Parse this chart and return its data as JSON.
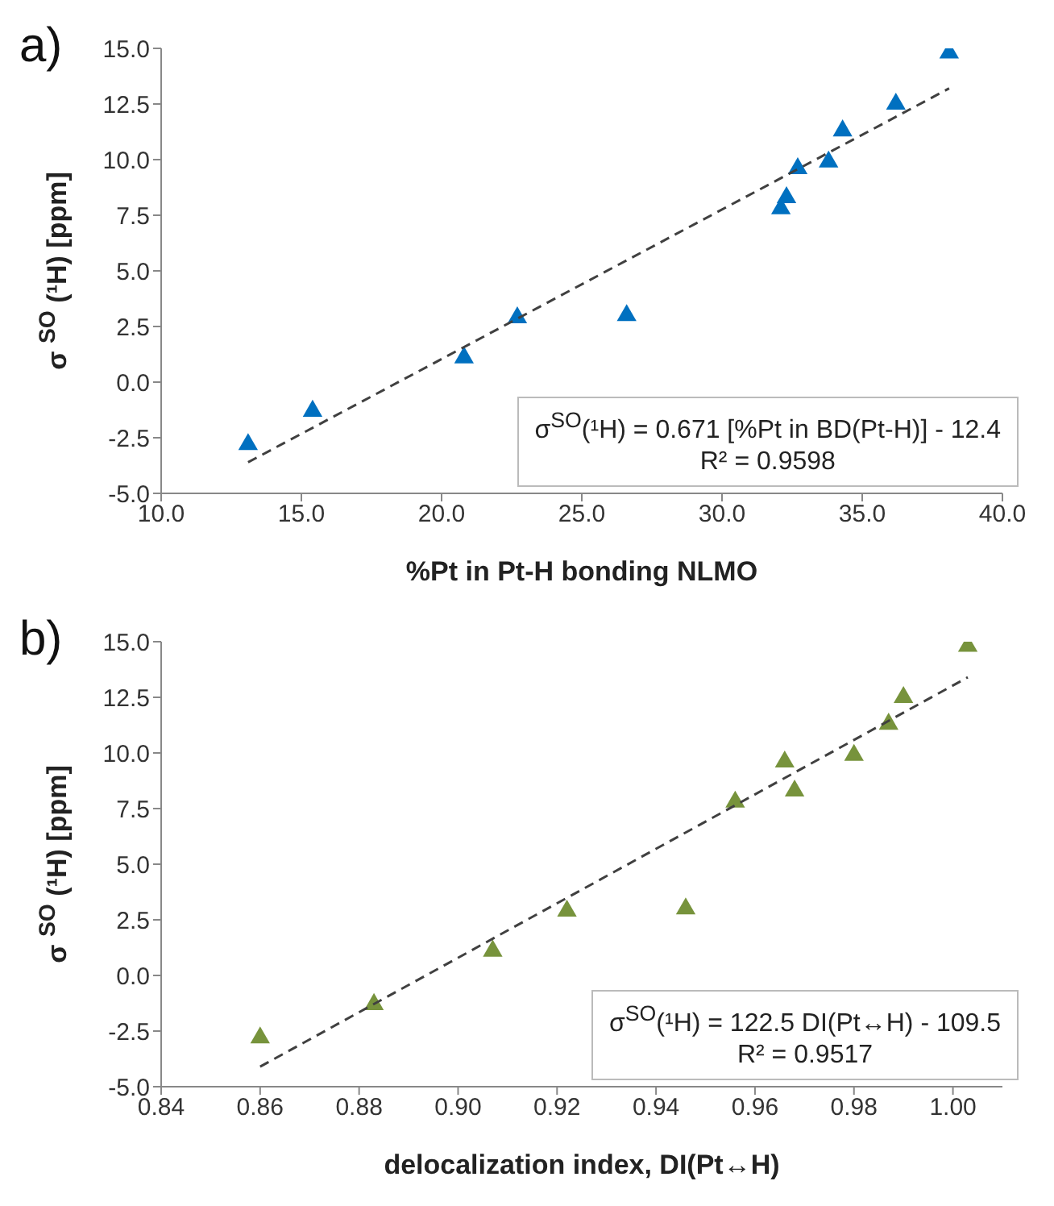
{
  "chart_data": [
    {
      "type": "scatter",
      "title": "a)",
      "xlabel": "%Pt in Pt-H bonding NLMO",
      "ylabel": "σ $^{SO}$ (¹H) [ppm]",
      "annotations": [
        "σ$^{SO}$(¹H) = 0.671 [%Pt in BD(Pt-H)] - 12.4",
        "R² = 0.9598"
      ],
      "xlim": [
        10,
        40
      ],
      "xticks": [
        {
          "value": 10,
          "label": "10.0"
        },
        {
          "value": 15,
          "label": "15.0"
        },
        {
          "value": 20,
          "label": "20.0"
        },
        {
          "value": 25,
          "label": "25.0"
        },
        {
          "value": 30,
          "label": "30.0"
        },
        {
          "value": 35,
          "label": "35.0"
        },
        {
          "value": 40,
          "label": "40.0"
        }
      ],
      "ylim": [
        -5,
        15
      ],
      "yticks": [
        {
          "value": -5,
          "label": "-5.0"
        },
        {
          "value": -2.5,
          "label": "-2.5"
        },
        {
          "value": 0,
          "label": "0.0"
        },
        {
          "value": 2.5,
          "label": "2.5"
        },
        {
          "value": 5,
          "label": "5.0"
        },
        {
          "value": 7.5,
          "label": "7.5"
        },
        {
          "value": 10,
          "label": "10.0"
        },
        {
          "value": 12.5,
          "label": "12.5"
        },
        {
          "value": 15,
          "label": "15.0"
        }
      ],
      "series": [
        {
          "type": "scatter",
          "color": "#0070c0",
          "marker": "triangle",
          "x": [
            13.1,
            15.4,
            20.8,
            22.7,
            26.6,
            32.1,
            32.3,
            32.7,
            33.8,
            34.3,
            36.2,
            38.1
          ],
          "values": [
            -2.8,
            -1.3,
            1.1,
            2.9,
            3.0,
            7.8,
            8.3,
            9.6,
            9.9,
            11.3,
            12.5,
            14.8
          ]
        },
        {
          "type": "line",
          "color": "#404040",
          "marker": "none",
          "line_style": "dashed",
          "x": [
            13.1,
            38.1
          ],
          "values": [
            -3.6,
            13.2
          ]
        }
      ]
    },
    {
      "type": "scatter",
      "title": "b)",
      "xlabel": "delocalization index, DI(Pt↔H)",
      "ylabel": "σ $^{SO}$ (¹H) [ppm]",
      "annotations": [
        "σ$^{SO}$(¹H) = 122.5 DI(Pt↔H) - 109.5",
        "R² = 0.9517"
      ],
      "xlim": [
        0.84,
        1.01
      ],
      "xticks": [
        {
          "value": 0.84,
          "label": "0.84"
        },
        {
          "value": 0.86,
          "label": "0.86"
        },
        {
          "value": 0.88,
          "label": "0.88"
        },
        {
          "value": 0.9,
          "label": "0.90"
        },
        {
          "value": 0.92,
          "label": "0.92"
        },
        {
          "value": 0.94,
          "label": "0.94"
        },
        {
          "value": 0.96,
          "label": "0.96"
        },
        {
          "value": 0.98,
          "label": "0.98"
        },
        {
          "value": 1,
          "label": "1.00"
        }
      ],
      "ylim": [
        -5,
        15
      ],
      "yticks": [
        {
          "value": -5,
          "label": "-5.0"
        },
        {
          "value": -2.5,
          "label": "-2.5"
        },
        {
          "value": 0,
          "label": "0.0"
        },
        {
          "value": 2.5,
          "label": "2.5"
        },
        {
          "value": 5,
          "label": "5.0"
        },
        {
          "value": 7.5,
          "label": "7.5"
        },
        {
          "value": 10,
          "label": "10.0"
        },
        {
          "value": 12.5,
          "label": "12.5"
        },
        {
          "value": 15,
          "label": "15.0"
        }
      ],
      "series": [
        {
          "type": "scatter",
          "color": "#77933c",
          "marker": "triangle",
          "x": [
            0.86,
            0.883,
            0.907,
            0.922,
            0.946,
            0.956,
            0.968,
            0.966,
            0.98,
            0.987,
            0.99,
            1.003
          ],
          "values": [
            -2.8,
            -1.3,
            1.1,
            2.9,
            3.0,
            7.8,
            8.3,
            9.6,
            9.9,
            11.3,
            12.5,
            14.8
          ]
        },
        {
          "type": "line",
          "color": "#404040",
          "marker": "none",
          "line_style": "dashed",
          "x": [
            0.86,
            1.003
          ],
          "values": [
            -4.1,
            13.4
          ]
        }
      ]
    }
  ]
}
